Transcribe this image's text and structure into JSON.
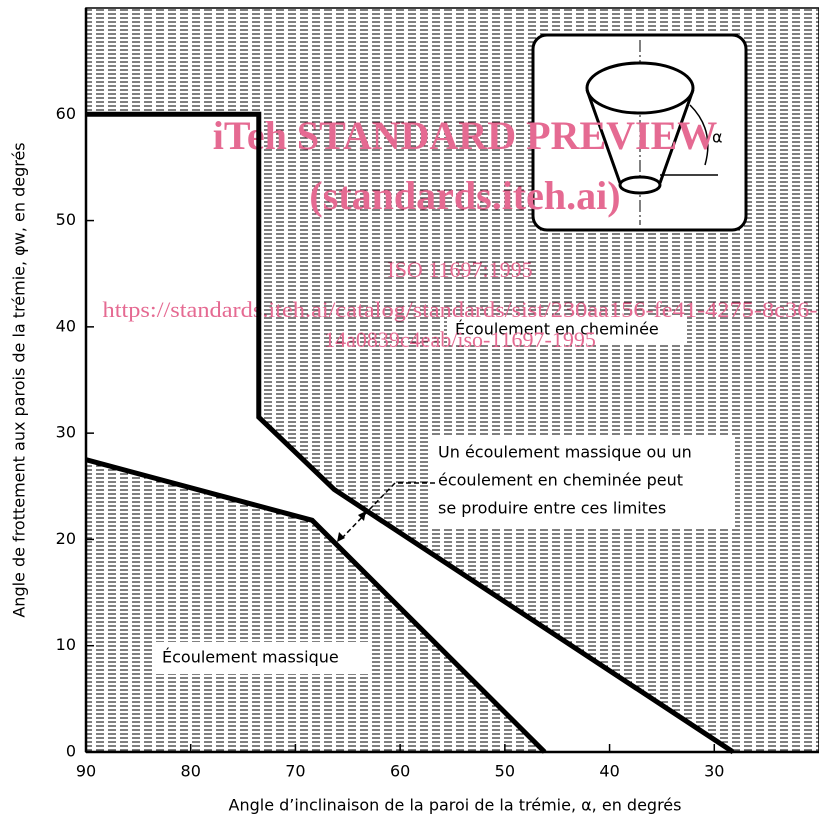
{
  "chart_data": {
    "type": "line",
    "x_label": "Angle d’inclinaison de la paroi de la trémie, α, en degrés",
    "y_label": "Angle de frottement aux parois de la trémie, φw, en degrés",
    "xlim": [
      90,
      20
    ],
    "ylim": [
      0,
      70
    ],
    "xticks": [
      90,
      80,
      70,
      60,
      50,
      40,
      30
    ],
    "yticks": [
      0,
      10,
      20,
      30,
      40,
      50,
      60
    ],
    "series": [
      {
        "color": "#000000",
        "x": [
          90,
          73.5,
          73.5,
          66.3,
          28.2
        ],
        "values": [
          60,
          60,
          31.5,
          24.7,
          0
        ]
      },
      {
        "color": "#000000",
        "x": [
          90,
          68.4,
          46.2
        ],
        "values": [
          27.5,
          21.8,
          0
        ]
      }
    ],
    "region_labels": [
      "Écoulement en cheminée",
      "Écoulement massique"
    ],
    "annotation": [
      "Un écoulement massique ou un",
      "écoulement en cheminée peut",
      "se produire entre ces limites"
    ],
    "inset_label": "α",
    "watermark": [
      "iTeh STANDARD PREVIEW",
      "(standards.iteh.ai)",
      "ISO 11697:1995",
      "https://standards.iteh.ai/catalog/standards/sist/230aa156-fe41-4275-8c36-",
      "14a0839c4eab/iso-11697-1995"
    ]
  }
}
